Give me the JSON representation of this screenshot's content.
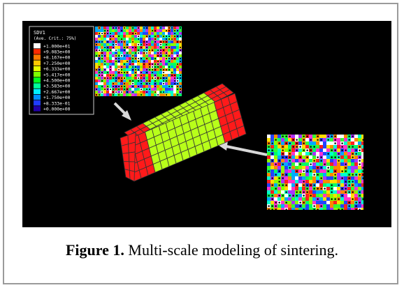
{
  "figure": {
    "legend": {
      "title": "SDV1",
      "subtitle": "(Ave. Crit.: 75%)",
      "entries": [
        {
          "label": "+1.000e+01",
          "color": "#ffffff"
        },
        {
          "label": "+9.083e+00",
          "color": "#ff2a00"
        },
        {
          "label": "+8.167e+00",
          "color": "#ff7a00"
        },
        {
          "label": "+7.250e+00",
          "color": "#ffc800"
        },
        {
          "label": "+6.333e+00",
          "color": "#e6ff00"
        },
        {
          "label": "+5.417e+00",
          "color": "#7dff00"
        },
        {
          "label": "+4.500e+00",
          "color": "#00ff20"
        },
        {
          "label": "+3.583e+00",
          "color": "#00ff9a"
        },
        {
          "label": "+2.667e+00",
          "color": "#00f0ff"
        },
        {
          "label": "+1.750e+00",
          "color": "#0090ff"
        },
        {
          "label": "+8.333e-01",
          "color": "#1f3cff"
        },
        {
          "label": "+0.000e+00",
          "color": "#2200aa"
        }
      ]
    },
    "microstructure_palette": [
      "#ff2020",
      "#ff8800",
      "#ffdd00",
      "#33ff33",
      "#00ffcc",
      "#00aaff",
      "#2244ff",
      "#aa33ff",
      "#ff33cc",
      "#ffffff",
      "#88ff00",
      "#00ff66"
    ],
    "mesh_colors": {
      "end": "#ff1a1a",
      "middle": "#b8ff1a",
      "grid": "#333333"
    }
  },
  "caption": {
    "label": "Figure 1.",
    "text": " Multi-scale modeling of sintering."
  }
}
